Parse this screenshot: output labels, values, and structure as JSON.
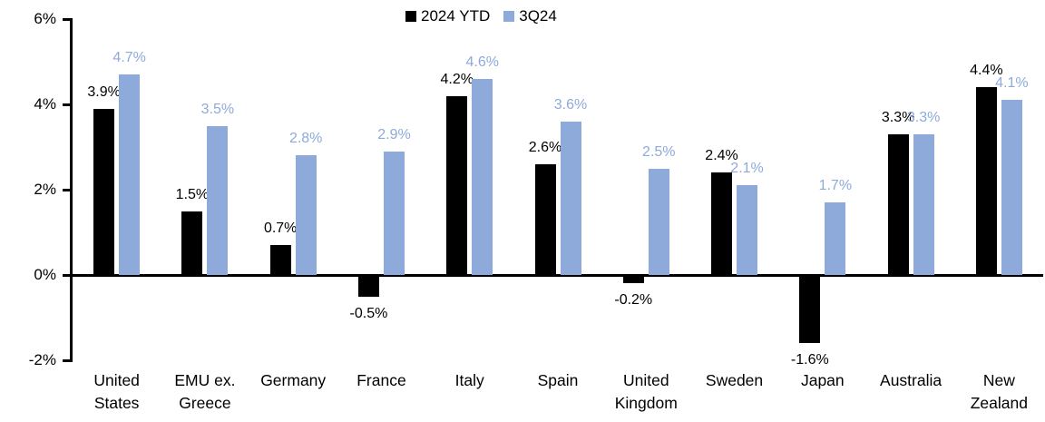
{
  "chart_data": {
    "type": "bar",
    "title": "",
    "categories": [
      "United States",
      "EMU ex. Greece",
      "Germany",
      "France",
      "Italy",
      "Spain",
      "United Kingdom",
      "Sweden",
      "Japan",
      "Australia",
      "New Zealand"
    ],
    "categories_display": [
      "United\nStates",
      "EMU ex.\nGreece",
      "Germany",
      "France",
      "Italy",
      "Spain",
      "United\nKingdom",
      "Sweden",
      "Japan",
      "Australia",
      "New\nZealand"
    ],
    "series": [
      {
        "name": "2024 YTD",
        "color": "#000000",
        "values": [
          3.9,
          1.5,
          0.7,
          -0.5,
          4.2,
          2.6,
          -0.2,
          2.4,
          -1.6,
          3.3,
          4.4
        ],
        "labels": [
          "3.9%",
          "1.5%",
          "0.7%",
          "-0.5%",
          "4.2%",
          "2.6%",
          "-0.2%",
          "2.4%",
          "-1.6%",
          "3.3%",
          "4.4%"
        ]
      },
      {
        "name": "3Q24",
        "color": "#8EAADB",
        "values": [
          4.7,
          3.5,
          2.8,
          2.9,
          4.6,
          3.6,
          2.5,
          2.1,
          1.7,
          3.3,
          4.1
        ],
        "labels": [
          "4.7%",
          "3.5%",
          "2.8%",
          "2.9%",
          "4.6%",
          "3.6%",
          "2.5%",
          "2.1%",
          "1.7%",
          "3.3%",
          "4.1%"
        ]
      }
    ],
    "y_axis": {
      "min": -2,
      "max": 6,
      "tick_values": [
        6,
        4,
        2,
        0,
        -2
      ],
      "tick_labels": [
        "6%",
        "4%",
        "2%",
        "0%",
        "-2%"
      ]
    },
    "legend": {
      "position": "top-center",
      "entries": [
        "2024 YTD",
        "3Q24"
      ]
    },
    "grid": false
  }
}
